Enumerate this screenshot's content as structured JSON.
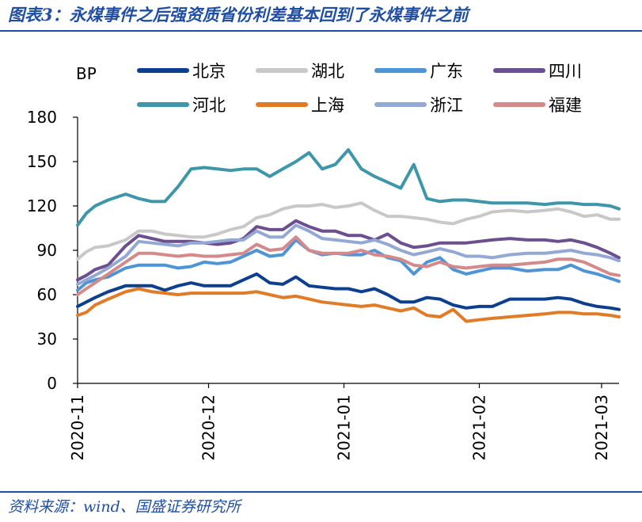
{
  "figure_title": "图表3：永煤事件之后强资质省份利差基本回到了永煤事件之前",
  "source_note": "资料来源：wind、国盛证券研究所",
  "chart_data": {
    "type": "line",
    "title": "",
    "xlabel": "",
    "ylabel": "BP",
    "ylim": [
      0,
      180
    ],
    "yticks": [
      0,
      30,
      60,
      90,
      120,
      150,
      180
    ],
    "x_range": [
      "2020-11-01",
      "2021-03-05"
    ],
    "xtick_labels": [
      "2020-11",
      "2020-12",
      "2021-01",
      "2021-02",
      "2021-03"
    ],
    "grid": false,
    "legend_position": "top",
    "x": [
      "2020-11-01",
      "2020-11-03",
      "2020-11-05",
      "2020-11-08",
      "2020-11-12",
      "2020-11-15",
      "2020-11-18",
      "2020-11-21",
      "2020-11-24",
      "2020-11-27",
      "2020-11-30",
      "2020-12-03",
      "2020-12-06",
      "2020-12-09",
      "2020-12-12",
      "2020-12-15",
      "2020-12-18",
      "2020-12-21",
      "2020-12-24",
      "2020-12-27",
      "2020-12-30",
      "2021-01-02",
      "2021-01-05",
      "2021-01-08",
      "2021-01-11",
      "2021-01-14",
      "2021-01-17",
      "2021-01-20",
      "2021-01-23",
      "2021-01-26",
      "2021-01-29",
      "2021-02-01",
      "2021-02-04",
      "2021-02-08",
      "2021-02-12",
      "2021-02-16",
      "2021-02-19",
      "2021-02-22",
      "2021-02-25",
      "2021-02-28",
      "2021-03-03",
      "2021-03-05"
    ],
    "series": [
      {
        "name": "北京",
        "color": "#0d3f8f",
        "values": [
          52,
          55,
          58,
          62,
          66,
          66,
          66,
          63,
          66,
          68,
          66,
          66,
          66,
          70,
          74,
          68,
          67,
          72,
          66,
          65,
          64,
          64,
          62,
          64,
          60,
          55,
          55,
          58,
          57,
          53,
          51,
          52,
          52,
          57,
          57,
          57,
          58,
          57,
          54,
          52,
          51,
          50
        ]
      },
      {
        "name": "湖北",
        "color": "#c8c8c8",
        "values": [
          84,
          89,
          92,
          93,
          97,
          103,
          103,
          101,
          100,
          99,
          99,
          101,
          104,
          106,
          112,
          114,
          118,
          120,
          120,
          121,
          119,
          120,
          122,
          117,
          113,
          113,
          112,
          111,
          109,
          108,
          111,
          113,
          116,
          117,
          116,
          117,
          118,
          116,
          113,
          114,
          111,
          111
        ]
      },
      {
        "name": "广东",
        "color": "#4f95d6",
        "values": [
          63,
          68,
          70,
          72,
          78,
          80,
          80,
          80,
          78,
          79,
          82,
          81,
          82,
          86,
          90,
          86,
          87,
          97,
          90,
          87,
          88,
          87,
          87,
          90,
          85,
          83,
          74,
          82,
          85,
          77,
          74,
          76,
          78,
          78,
          76,
          77,
          77,
          80,
          76,
          74,
          71,
          69
        ]
      },
      {
        "name": "四川",
        "color": "#6b4f8f",
        "values": [
          70,
          73,
          77,
          80,
          93,
          100,
          98,
          96,
          96,
          96,
          95,
          94,
          95,
          98,
          106,
          104,
          104,
          110,
          106,
          103,
          103,
          100,
          100,
          97,
          101,
          95,
          92,
          93,
          95,
          95,
          95,
          96,
          97,
          98,
          97,
          97,
          96,
          97,
          95,
          92,
          88,
          85
        ]
      },
      {
        "name": "河北",
        "color": "#3e97a8",
        "values": [
          107,
          115,
          120,
          124,
          128,
          125,
          123,
          123,
          133,
          145,
          146,
          145,
          144,
          145,
          145,
          140,
          145,
          150,
          156,
          145,
          148,
          158,
          145,
          140,
          136,
          132,
          148,
          125,
          123,
          124,
          124,
          123,
          122,
          122,
          122,
          121,
          122,
          122,
          121,
          121,
          120,
          118
        ]
      },
      {
        "name": "上海",
        "color": "#e07b28",
        "values": [
          46,
          48,
          53,
          57,
          62,
          64,
          62,
          61,
          60,
          61,
          61,
          61,
          61,
          61,
          62,
          60,
          58,
          59,
          57,
          55,
          54,
          53,
          52,
          53,
          51,
          49,
          51,
          46,
          45,
          50,
          42,
          43,
          44,
          45,
          46,
          47,
          48,
          48,
          47,
          47,
          46,
          45
        ]
      },
      {
        "name": "浙江",
        "color": "#93a9d4",
        "values": [
          67,
          70,
          73,
          78,
          86,
          96,
          95,
          94,
          93,
          95,
          95,
          96,
          97,
          97,
          103,
          99,
          99,
          107,
          103,
          98,
          97,
          96,
          95,
          97,
          94,
          90,
          87,
          89,
          91,
          89,
          86,
          86,
          85,
          87,
          88,
          88,
          89,
          90,
          88,
          87,
          85,
          83
        ]
      },
      {
        "name": "福建",
        "color": "#d48a8a",
        "values": [
          60,
          64,
          68,
          74,
          82,
          88,
          88,
          87,
          86,
          87,
          86,
          86,
          87,
          88,
          94,
          90,
          91,
          99,
          90,
          88,
          88,
          88,
          90,
          87,
          86,
          84,
          80,
          79,
          82,
          79,
          78,
          79,
          80,
          80,
          81,
          82,
          84,
          84,
          82,
          78,
          74,
          73
        ]
      }
    ]
  }
}
